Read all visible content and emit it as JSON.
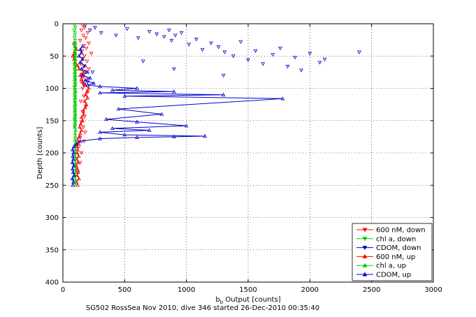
{
  "chart_data": {
    "type": "scatter",
    "title": "",
    "caption": "SG502 RossSea Nov 2010, dive 346 started 26-Dec-2010 00:35:40",
    "xlabel_main": "b",
    "xlabel_sub": "b",
    "xlabel_rest": " Output [counts]",
    "ylabel": "Depth [counts]",
    "xlim": [
      0,
      3000
    ],
    "ylim": [
      0,
      400
    ],
    "y_reversed": true,
    "grid": true,
    "legend_position": "bottom-right",
    "x_ticks": [
      "0",
      "500",
      "1000",
      "1500",
      "2000",
      "2500",
      "3000"
    ],
    "y_ticks": [
      "0",
      "50",
      "100",
      "150",
      "200",
      "250",
      "300",
      "350",
      "400"
    ],
    "series": [
      {
        "name": "600 nM, down",
        "color": "#ff0000",
        "marker": "triangle-down",
        "connected": false,
        "x": [
          160,
          175,
          150,
          200,
          165,
          185,
          140,
          210,
          170,
          190,
          155,
          230,
          175,
          160,
          195,
          145,
          170,
          210,
          180,
          155,
          165,
          190,
          150,
          175,
          160,
          200,
          170,
          145,
          185,
          160,
          175,
          150,
          165,
          180,
          140,
          170,
          130,
          150,
          140,
          120
        ],
        "y": [
          2,
          6,
          10,
          14,
          18,
          22,
          26,
          30,
          34,
          38,
          42,
          46,
          50,
          54,
          58,
          62,
          66,
          70,
          74,
          78,
          82,
          86,
          90,
          94,
          100,
          106,
          112,
          120,
          128,
          136,
          144,
          152,
          160,
          168,
          176,
          182,
          190,
          200,
          215,
          230
        ]
      },
      {
        "name": "chl a, down",
        "color": "#00cc00",
        "marker": "triangle-down",
        "connected": false,
        "x": [
          95,
          100,
          92,
          98,
          96,
          94,
          100,
          97,
          93,
          99,
          96,
          94,
          98,
          95,
          100,
          93,
          97,
          95,
          99,
          94,
          96,
          98,
          95,
          97,
          93,
          96,
          98,
          94,
          97,
          95,
          99,
          96,
          94,
          98,
          95,
          100,
          96,
          93,
          97,
          95
        ],
        "y": [
          2,
          6,
          10,
          14,
          18,
          22,
          26,
          30,
          34,
          38,
          42,
          46,
          50,
          54,
          58,
          62,
          66,
          70,
          74,
          78,
          82,
          86,
          90,
          94,
          98,
          102,
          106,
          110,
          114,
          118,
          122,
          126,
          130,
          134,
          138,
          142,
          146,
          150,
          156,
          160
        ]
      },
      {
        "name": "CDOM, down",
        "color": "#0000cc",
        "marker": "triangle-down",
        "connected": false,
        "x": [
          180,
          220,
          260,
          310,
          430,
          520,
          610,
          700,
          760,
          820,
          860,
          880,
          910,
          960,
          1020,
          1080,
          1130,
          1200,
          1260,
          1310,
          1380,
          1440,
          1500,
          1560,
          1620,
          1700,
          1760,
          1820,
          1880,
          1930,
          2000,
          2080,
          2120,
          2400,
          650,
          900,
          1300,
          240,
          200,
          170
        ],
        "y": [
          2,
          10,
          6,
          14,
          18,
          8,
          22,
          12,
          16,
          20,
          10,
          26,
          18,
          14,
          32,
          24,
          40,
          30,
          36,
          44,
          50,
          28,
          56,
          42,
          62,
          48,
          38,
          66,
          52,
          72,
          46,
          60,
          55,
          44,
          58,
          70,
          80,
          75,
          90,
          95
        ]
      },
      {
        "name": "600 nM, up",
        "color": "#ff0000",
        "marker": "triangle-up",
        "connected": true,
        "x": [
          120,
          110,
          130,
          115,
          125,
          118,
          108,
          122,
          112,
          128,
          115,
          120,
          110,
          125,
          118,
          132,
          140,
          150,
          135,
          145,
          160,
          150,
          170,
          165,
          180,
          190,
          175,
          200,
          185,
          195,
          210,
          180,
          160,
          150,
          140,
          170,
          130,
          120,
          100,
          90,
          80,
          95,
          110,
          100,
          90
        ],
        "y": [
          250,
          245,
          240,
          235,
          230,
          225,
          220,
          215,
          210,
          205,
          200,
          195,
          190,
          185,
          180,
          175,
          170,
          165,
          160,
          155,
          150,
          145,
          140,
          135,
          130,
          125,
          120,
          115,
          110,
          105,
          100,
          95,
          90,
          85,
          80,
          75,
          70,
          65,
          60,
          55,
          50,
          45,
          40,
          35,
          30
        ]
      },
      {
        "name": "chl a, up",
        "color": "#00cc00",
        "marker": "triangle-up",
        "connected": true,
        "x": [
          100,
          102,
          98,
          101,
          99,
          103,
          97,
          100,
          102,
          98,
          101,
          99,
          100,
          102,
          98,
          101,
          99,
          103,
          97,
          100,
          102,
          98,
          101,
          99,
          100,
          102,
          98,
          101,
          99,
          103,
          97,
          100,
          102,
          98,
          101,
          99,
          100,
          102,
          98,
          101,
          99,
          100,
          102,
          98,
          100
        ],
        "y": [
          250,
          245,
          240,
          235,
          230,
          225,
          220,
          215,
          210,
          205,
          200,
          195,
          190,
          185,
          180,
          175,
          170,
          165,
          160,
          155,
          150,
          145,
          140,
          135,
          130,
          125,
          120,
          115,
          110,
          105,
          100,
          95,
          90,
          85,
          80,
          75,
          70,
          65,
          60,
          55,
          50,
          45,
          40,
          35,
          30
        ]
      },
      {
        "name": "CDOM, up",
        "color": "#0000cc",
        "marker": "triangle-up",
        "connected": true,
        "x": [
          80,
          85,
          75,
          90,
          82,
          78,
          88,
          76,
          84,
          80,
          86,
          78,
          90,
          110,
          140,
          300,
          600,
          900,
          1150,
          500,
          300,
          700,
          400,
          1000,
          600,
          350,
          800,
          450,
          1780,
          500,
          1300,
          300,
          900,
          400,
          600,
          300,
          200,
          250,
          180,
          220,
          160,
          200,
          150,
          180,
          140,
          160,
          130,
          150,
          140,
          160
        ],
        "y": [
          250,
          245,
          240,
          235,
          230,
          225,
          220,
          215,
          210,
          205,
          200,
          195,
          190,
          186,
          182,
          178,
          176,
          175,
          174,
          172,
          168,
          165,
          162,
          158,
          152,
          148,
          140,
          132,
          116,
          112,
          110,
          107,
          105,
          103,
          100,
          97,
          95,
          92,
          88,
          84,
          80,
          75,
          70,
          65,
          60,
          55,
          50,
          45,
          40,
          35
        ]
      }
    ]
  }
}
